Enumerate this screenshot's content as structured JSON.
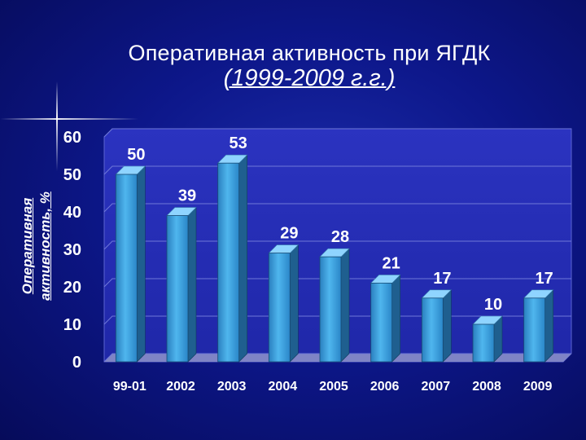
{
  "slide": {
    "title_line1": "Оперативная активность при ЯГДК",
    "title_line2": "(1999-2009 г.г.)"
  },
  "chart_data": {
    "type": "bar",
    "ylabel": "Оперативная активность, %",
    "xlabel": "",
    "categories": [
      "99-01",
      "2002",
      "2003",
      "2004",
      "2005",
      "2006",
      "2007",
      "2008",
      "2009"
    ],
    "values": [
      50,
      39,
      53,
      29,
      28,
      21,
      17,
      10,
      17
    ],
    "ylim": [
      0,
      60
    ],
    "yticks": [
      0,
      10,
      20,
      30,
      40,
      50,
      60
    ],
    "grid": true,
    "legend": "none",
    "colors": {
      "background": "#0a0f6e",
      "plot_background": "#2c36c4",
      "bar_front": "#3a9ed8",
      "bar_side": "#1f5f8f",
      "bar_top": "#8fd4ff",
      "gridline": "#6f78d8"
    }
  }
}
